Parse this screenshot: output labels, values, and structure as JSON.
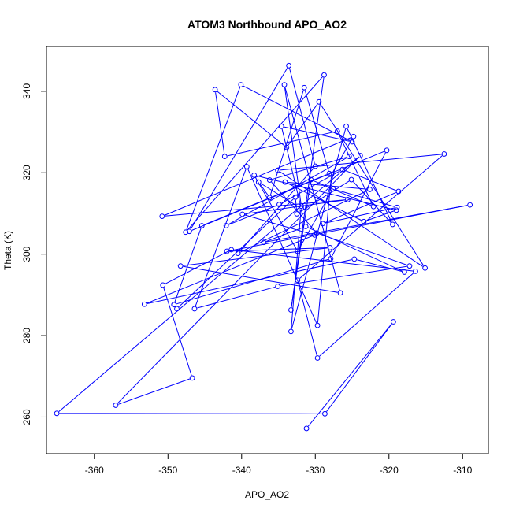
{
  "chart_data": {
    "type": "scatter",
    "title": "ATOM3 Northbound APO_AO2",
    "xlabel": "APO_AO2",
    "ylabel": "Theta (K)",
    "xlim": [
      -366.5,
      -306.5
    ],
    "ylim": [
      251,
      351
    ],
    "xticks": [
      -360,
      -350,
      -340,
      -330,
      -320,
      -310
    ],
    "yticks": [
      260,
      280,
      300,
      320,
      340
    ],
    "xtick_labels": [
      "-360",
      "-350",
      "-340",
      "-330",
      "-320",
      "-310"
    ],
    "ytick_labels": [
      "260",
      "280",
      "300",
      "320",
      "340"
    ],
    "grid": false,
    "line_color": "#0000ff",
    "series": [
      {
        "x": [
          -331.2,
          -319.4,
          -328.7,
          -365.1,
          -323.9,
          -357.1,
          -346.7,
          -350.7,
          -341.4,
          -316.4,
          -329.7,
          -332.4,
          -312.5,
          -335.1,
          -315.1,
          -329.5,
          -333.9,
          -343.6,
          -342.3,
          -327.0,
          -322.1,
          -330.6,
          -333.3,
          -328.8,
          -347.6,
          -340.1,
          -325.0,
          -334.6,
          -331.9,
          -337.7,
          -336.2,
          -331.5,
          -328.1,
          -345.4,
          -349.2,
          -327.9,
          -320.3,
          -347.1,
          -333.6,
          -330.0,
          -340.5,
          -322.6,
          -334.1,
          -323.4,
          -319.0,
          -338.3,
          -332.4,
          -327.6,
          -318.9,
          -329.0,
          -318.7,
          -326.3,
          -334.9,
          -342.1,
          -325.4,
          -336.2,
          -329.8,
          -317.2,
          -335.1,
          -346.4,
          -339.3,
          -329.7,
          -327.8,
          -324.8,
          -350.8,
          -325.6,
          -339.9,
          -330.1,
          -353.2,
          -324.7,
          -317.9,
          -331.3,
          -337.0,
          -309.0,
          -342.0,
          -328.0,
          -348.3,
          -326.6,
          -334.2,
          -331.9,
          -333.3,
          -325.8,
          -319.5,
          -325.1,
          -332.5,
          -332.7,
          -348.8
        ],
        "y": [
          257.2,
          283.4,
          260.8,
          260.9,
          324.2,
          262.9,
          269.6,
          292.4,
          301.1,
          295.8,
          274.5,
          293.6,
          324.6,
          320.6,
          296.6,
          337.4,
          326.2,
          340.4,
          324.0,
          330.2,
          311.7,
          318.3,
          286.3,
          344.0,
          305.4,
          341.6,
          327.6,
          331.4,
          311.2,
          317.7,
          313.9,
          340.9,
          319.8,
          307.0,
          287.6,
          298.9,
          325.5,
          305.6,
          346.3,
          321.6,
          300.2,
          315.9,
          317.7,
          308.0,
          310.8,
          319.4,
          300.7,
          316.0,
          311.5,
          307.5,
          315.4,
          320.8,
          312.2,
          307.0,
          324.0,
          318.2,
          305.2,
          297.1,
          292.1,
          286.6,
          321.5,
          282.5,
          319.6,
          328.9,
          309.3,
          313.4,
          309.8,
          304.7,
          287.7,
          298.8,
          295.6,
          306.8,
          302.9,
          312.1,
          300.7,
          301.6,
          297.1,
          290.5,
          341.6,
          311.8,
          281.0,
          331.4,
          307.3,
          318.3,
          309.9,
          314.0,
          286.6
        ],
        "y_points": [
          257.2,
          283.4,
          260.8,
          260.9,
          324.2,
          262.9,
          269.6,
          292.4,
          301.1,
          295.8,
          274.5,
          293.6,
          324.6,
          320.6,
          296.6,
          337.4,
          326.2,
          340.4,
          324.0,
          330.2,
          311.7,
          318.3,
          286.3,
          344.0,
          305.4,
          341.6,
          327.6,
          331.4,
          311.2,
          317.7,
          313.9,
          340.9,
          319.8,
          307.0,
          287.6,
          298.9,
          325.5,
          305.6,
          346.3,
          321.6,
          300.2,
          315.9,
          317.7,
          308.0,
          310.8,
          319.4,
          300.7,
          316.0,
          311.5,
          307.5,
          315.4,
          320.8,
          312.2,
          307.0,
          324.0,
          318.2,
          305.2,
          297.1,
          292.1,
          286.6,
          321.5,
          282.5,
          319.6,
          328.9,
          309.3,
          313.4,
          309.8,
          304.7,
          287.7,
          298.8,
          295.6,
          306.8,
          302.9,
          312.1,
          300.7,
          301.6,
          297.1,
          290.5,
          341.6,
          311.8,
          281.0,
          331.4,
          307.3,
          318.3,
          309.9,
          314.0,
          286.6
        ]
      }
    ],
    "points": [
      [
        -331.2,
        257.2
      ],
      [
        -319.4,
        283.4
      ],
      [
        -328.7,
        260.8
      ],
      [
        -365.1,
        260.9
      ],
      [
        -323.9,
        324.2
      ],
      [
        -357.1,
        262.9
      ],
      [
        -346.7,
        269.6
      ],
      [
        -350.7,
        292.4
      ],
      [
        -341.4,
        301.1
      ],
      [
        -316.4,
        295.8
      ],
      [
        -329.7,
        274.5
      ],
      [
        -332.4,
        293.6
      ],
      [
        -312.5,
        324.6
      ],
      [
        -335.1,
        320.6
      ],
      [
        -315.1,
        296.6
      ],
      [
        -329.5,
        337.4
      ],
      [
        -333.9,
        326.2
      ],
      [
        -343.6,
        340.4
      ],
      [
        -342.3,
        324.0
      ],
      [
        -327.0,
        330.2
      ],
      [
        -322.1,
        311.7
      ],
      [
        -330.6,
        318.3
      ],
      [
        -333.3,
        286.3
      ],
      [
        -328.8,
        344.0
      ],
      [
        -347.6,
        305.4
      ],
      [
        -340.1,
        341.6
      ],
      [
        -325.0,
        327.6
      ],
      [
        -334.6,
        331.4
      ],
      [
        -331.9,
        311.2
      ],
      [
        -337.7,
        317.7
      ],
      [
        -336.2,
        313.9
      ],
      [
        -331.5,
        340.9
      ],
      [
        -328.1,
        319.8
      ],
      [
        -345.4,
        307.0
      ],
      [
        -349.2,
        287.6
      ],
      [
        -327.9,
        298.9
      ],
      [
        -320.3,
        325.5
      ],
      [
        -347.1,
        305.6
      ],
      [
        -333.6,
        346.3
      ],
      [
        -330.0,
        321.6
      ],
      [
        -340.5,
        300.2
      ],
      [
        -322.6,
        315.9
      ],
      [
        -334.1,
        317.7
      ],
      [
        -323.4,
        308.0
      ],
      [
        -319.0,
        310.8
      ],
      [
        -338.3,
        319.4
      ],
      [
        -332.4,
        300.7
      ],
      [
        -327.6,
        316.0
      ],
      [
        -318.9,
        311.5
      ],
      [
        -329.0,
        307.5
      ],
      [
        -318.7,
        315.4
      ],
      [
        -326.3,
        320.8
      ],
      [
        -334.9,
        312.2
      ],
      [
        -342.1,
        307.0
      ],
      [
        -325.4,
        324.0
      ],
      [
        -336.2,
        318.2
      ],
      [
        -329.8,
        305.2
      ],
      [
        -317.2,
        297.1
      ],
      [
        -335.1,
        292.1
      ],
      [
        -346.4,
        286.6
      ],
      [
        -339.3,
        321.5
      ],
      [
        -329.7,
        282.5
      ],
      [
        -327.8,
        319.6
      ],
      [
        -324.8,
        328.9
      ],
      [
        -350.8,
        309.3
      ],
      [
        -325.6,
        313.4
      ],
      [
        -339.9,
        309.8
      ],
      [
        -330.1,
        304.7
      ],
      [
        -353.2,
        287.7
      ],
      [
        -324.7,
        298.8
      ],
      [
        -317.9,
        295.6
      ],
      [
        -331.3,
        306.8
      ],
      [
        -337.0,
        302.9
      ],
      [
        -309.0,
        312.1
      ],
      [
        -342.0,
        300.7
      ],
      [
        -328.0,
        301.6
      ],
      [
        -348.3,
        297.1
      ],
      [
        -326.6,
        290.5
      ],
      [
        -334.2,
        341.6
      ],
      [
        -331.9,
        311.8
      ],
      [
        -333.3,
        281.0
      ],
      [
        -325.8,
        331.4
      ],
      [
        -319.5,
        307.3
      ],
      [
        -325.1,
        318.3
      ],
      [
        -332.5,
        309.9
      ],
      [
        -332.7,
        314.0
      ],
      [
        -348.8,
        286.6
      ]
    ]
  }
}
